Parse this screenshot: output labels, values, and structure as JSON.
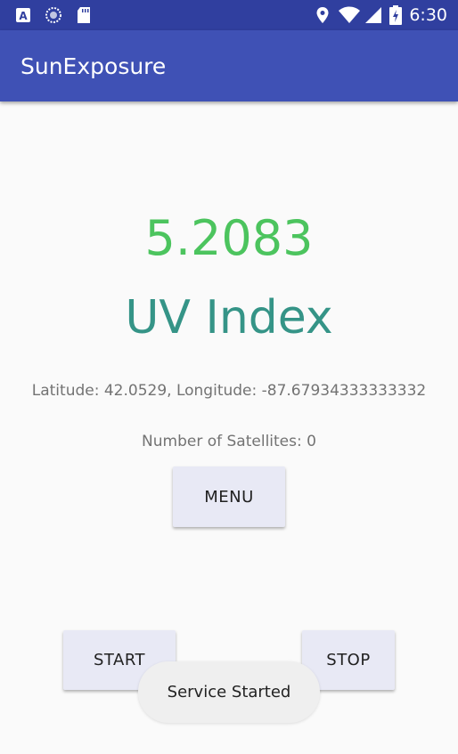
{
  "status_bar": {
    "time": "6:30",
    "left_icons": [
      "android-a-icon",
      "sync-circle-icon",
      "sd-card-icon"
    ],
    "right_icons": [
      "location-icon",
      "wifi-icon",
      "signal-icon",
      "battery-charging-icon"
    ]
  },
  "app_bar": {
    "title": "SunExposure"
  },
  "main": {
    "uv_value": "5.2083",
    "uv_label": "UV Index",
    "coordinates": "Latitude: 42.0529, Longitude: -87.67934333333332",
    "satellites": "Number of Satellites: 0",
    "menu_button": "MENU",
    "start_button": "START",
    "stop_button": "STOP"
  },
  "toast": {
    "message": "Service Started"
  },
  "colors": {
    "status_bar": "#303f9f",
    "app_bar": "#3f51b5",
    "uv_value": "#4cc45e",
    "uv_label": "#359487",
    "button_bg": "#e8e9f5"
  }
}
